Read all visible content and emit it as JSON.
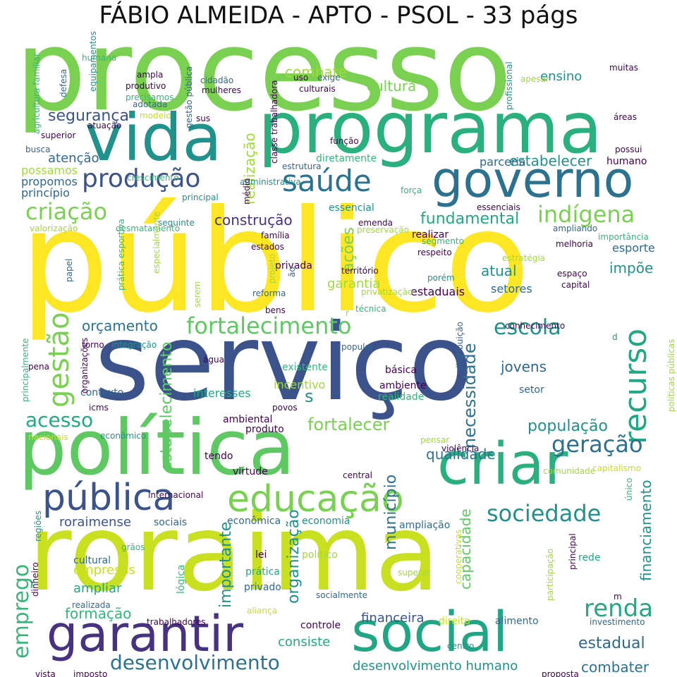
{
  "title": "FÁBIO ALMEIDA - APTO - PSOL - 33 págs",
  "chart_data": {
    "type": "wordcloud",
    "words": [
      {
        "text": "processo",
        "color": "#7ad151"
      },
      {
        "text": "público",
        "color": "#fde725"
      },
      {
        "text": "serviço",
        "color": "#3b528b"
      },
      {
        "text": "roraima",
        "color": "#c8e020"
      },
      {
        "text": "política",
        "color": "#5ec962"
      },
      {
        "text": "programa",
        "color": "#2ab07f"
      },
      {
        "text": "vida",
        "color": "#21918c"
      },
      {
        "text": "criar",
        "color": "#2ab07f"
      },
      {
        "text": "social",
        "color": "#21a585"
      },
      {
        "text": "governo",
        "color": "#2c728e"
      },
      {
        "text": "garantir",
        "color": "#46327e"
      },
      {
        "text": "pública",
        "color": "#3b528b"
      },
      {
        "text": "educação",
        "color": "#7ad151"
      },
      {
        "text": "saúde",
        "color": "#2c728e"
      },
      {
        "text": "produção",
        "color": "#3b528b"
      },
      {
        "text": "criação",
        "color": "#7ad151"
      },
      {
        "text": "indígena",
        "color": "#7ad151"
      },
      {
        "text": "fortalecimento",
        "color": "#5ec962"
      },
      {
        "text": "escola",
        "color": "#21918c"
      },
      {
        "text": "recurso",
        "color": "#22a884"
      },
      {
        "text": "gestão",
        "color": "#7ad151"
      },
      {
        "text": "geração",
        "color": "#2c728e"
      },
      {
        "text": "sociedade",
        "color": "#21918c"
      },
      {
        "text": "renda",
        "color": "#22a884"
      },
      {
        "text": "desenvolvimento",
        "color": "#2c728e"
      },
      {
        "text": "acesso",
        "color": "#22a884"
      },
      {
        "text": "emprego",
        "color": "#35b779"
      },
      {
        "text": "fortalecer",
        "color": "#7ad151"
      },
      {
        "text": "população",
        "color": "#21918c"
      },
      {
        "text": "qualidade",
        "color": "#2c728e"
      },
      {
        "text": "estabelecimento",
        "color": "#5ec962"
      },
      {
        "text": "necessidade",
        "color": "#2c728e"
      },
      {
        "text": "financiamento",
        "color": "#21918c"
      },
      {
        "text": "fundamental",
        "color": "#22a884"
      },
      {
        "text": "segurança",
        "color": "#3b528b"
      },
      {
        "text": "combate",
        "color": "#a0da39"
      },
      {
        "text": "cultura",
        "color": "#7ad151"
      },
      {
        "text": "estabelecer",
        "color": "#21918c"
      },
      {
        "text": "orçamento",
        "color": "#2c728e"
      },
      {
        "text": "atual",
        "color": "#21918c"
      },
      {
        "text": "construção",
        "color": "#46327e"
      },
      {
        "text": "ações",
        "color": "#7ad151"
      },
      {
        "text": "garantia",
        "color": "#a0da39"
      },
      {
        "text": "jovens",
        "color": "#31688e"
      },
      {
        "text": "estadual",
        "color": "#31688e"
      },
      {
        "text": "combater",
        "color": "#2c728e"
      },
      {
        "text": "município",
        "color": "#2c728e"
      },
      {
        "text": "capacidade",
        "color": "#5ec962"
      },
      {
        "text": "organização",
        "color": "#21918c"
      },
      {
        "text": "importante",
        "color": "#21918c"
      },
      {
        "text": "roraimense",
        "color": "#3b528b"
      },
      {
        "text": "formação",
        "color": "#35b779"
      },
      {
        "text": "consiste",
        "color": "#22a884"
      },
      {
        "text": "financeira",
        "color": "#3b528b"
      },
      {
        "text": "desenvolvimento humano",
        "color": "#21918c"
      },
      {
        "text": "impõe",
        "color": "#21918c"
      },
      {
        "text": "esporte",
        "color": "#31688e"
      },
      {
        "text": "atenção",
        "color": "#31688e"
      },
      {
        "text": "realização",
        "color": "#a0da39"
      },
      {
        "text": "s",
        "color": "#21918c"
      },
      {
        "text": "ampliar",
        "color": "#22a884"
      },
      {
        "text": "empresas",
        "color": "#c8e020"
      },
      {
        "text": "ensino",
        "color": "#21918c"
      },
      {
        "text": "possamos",
        "color": "#a0da39"
      },
      {
        "text": "propomos",
        "color": "#31688e"
      },
      {
        "text": "princípio",
        "color": "#31688e"
      },
      {
        "text": "parceria",
        "color": "#31688e"
      },
      {
        "text": "humano",
        "color": "#440154"
      },
      {
        "text": "setores",
        "color": "#31688e"
      },
      {
        "text": "estaduais",
        "color": "#440154"
      },
      {
        "text": "diretamente",
        "color": "#35b779"
      },
      {
        "text": "interesses",
        "color": "#22a884"
      },
      {
        "text": "incentivo",
        "color": "#a0da39"
      },
      {
        "text": "existente",
        "color": "#35b779"
      },
      {
        "text": "básica",
        "color": "#440154"
      },
      {
        "text": "ambiente",
        "color": "#440154"
      },
      {
        "text": "realidade",
        "color": "#35b779"
      },
      {
        "text": "setor",
        "color": "#31688e"
      },
      {
        "text": "contexto",
        "color": "#31688e"
      },
      {
        "text": "sociais",
        "color": "#31688e"
      },
      {
        "text": "econômica",
        "color": "#31688e"
      },
      {
        "text": "economia",
        "color": "#21918c"
      },
      {
        "text": "ampliação",
        "color": "#31688e"
      },
      {
        "text": "cultural",
        "color": "#31688e"
      },
      {
        "text": "lógica",
        "color": "#35b779"
      },
      {
        "text": "lei",
        "color": "#440154"
      },
      {
        "text": "político",
        "color": "#a0da39"
      },
      {
        "text": "prática",
        "color": "#22a884"
      },
      {
        "text": "privado",
        "color": "#31688e"
      },
      {
        "text": "privada",
        "color": "#440154"
      },
      {
        "text": "rede",
        "color": "#22a884"
      },
      {
        "text": "controle",
        "color": "#440154"
      },
      {
        "text": "direito",
        "color": "#c8e020"
      },
      {
        "text": "alimento",
        "color": "#31688e"
      },
      {
        "text": "virtude",
        "color": "#440154"
      },
      {
        "text": "ambiental",
        "color": "#440154"
      },
      {
        "text": "produto",
        "color": "#440154"
      },
      {
        "text": "tendo",
        "color": "#440154"
      },
      {
        "text": "água",
        "color": "#440154"
      },
      {
        "text": "pena",
        "color": "#440154"
      },
      {
        "text": "família",
        "color": "#440154"
      },
      {
        "text": "estados",
        "color": "#440154"
      },
      {
        "text": "território",
        "color": "#440154"
      },
      {
        "text": "reforma",
        "color": "#31688e"
      },
      {
        "text": "bens",
        "color": "#440154"
      },
      {
        "text": "realizar",
        "color": "#440154"
      },
      {
        "text": "respeito",
        "color": "#440154"
      },
      {
        "text": "segmento",
        "color": "#35b779"
      },
      {
        "text": "essencial",
        "color": "#21918c"
      },
      {
        "text": "essenciais",
        "color": "#440154"
      },
      {
        "text": "preservação",
        "color": "#a0da39"
      },
      {
        "text": "melhoria",
        "color": "#440154"
      },
      {
        "text": "capital",
        "color": "#440154"
      },
      {
        "text": "espaço",
        "color": "#440154"
      },
      {
        "text": "importância",
        "color": "#35b779"
      },
      {
        "text": "estratégia",
        "color": "#a0da39"
      },
      {
        "text": "ampliando",
        "color": "#31688e"
      },
      {
        "text": "culturais",
        "color": "#440154"
      },
      {
        "text": "uso",
        "color": "#440154"
      },
      {
        "text": "exige",
        "color": "#31688e"
      },
      {
        "text": "apesar",
        "color": "#a0da39"
      },
      {
        "text": "muitas",
        "color": "#440154"
      },
      {
        "text": "áreas",
        "color": "#440154"
      },
      {
        "text": "possui",
        "color": "#440154"
      },
      {
        "text": "função",
        "color": "#440154"
      },
      {
        "text": "estrutura",
        "color": "#31688e"
      },
      {
        "text": "força",
        "color": "#35b779"
      },
      {
        "text": "administrativa",
        "color": "#21918c"
      },
      {
        "text": "crescimento",
        "color": "#35b779"
      },
      {
        "text": "principal",
        "color": "#21918c"
      },
      {
        "text": "seguinte",
        "color": "#21918c"
      },
      {
        "text": "desmatamento",
        "color": "#35b779"
      },
      {
        "text": "valorização",
        "color": "#a0da39"
      },
      {
        "text": "adotada",
        "color": "#31688e"
      },
      {
        "text": "modelo",
        "color": "#c8e020"
      },
      {
        "text": "sus",
        "color": "#440154"
      },
      {
        "text": "atuação",
        "color": "#440154"
      },
      {
        "text": "superior",
        "color": "#440154"
      },
      {
        "text": "busca",
        "color": "#31688e"
      },
      {
        "text": "ampla",
        "color": "#440154"
      },
      {
        "text": "produtivo",
        "color": "#440154"
      },
      {
        "text": "precisamos",
        "color": "#35b779"
      },
      {
        "text": "cidadão",
        "color": "#31688e"
      },
      {
        "text": "mulheres",
        "color": "#440154"
      },
      {
        "text": "humana",
        "color": "#35b779"
      },
      {
        "text": "defesa",
        "color": "#31688e"
      },
      {
        "text": "equipamentos",
        "color": "#21918c"
      },
      {
        "text": "gestão pública",
        "color": "#31688e"
      },
      {
        "text": "classe trabalhadora",
        "color": "#440154"
      },
      {
        "text": "médio",
        "color": "#440154"
      },
      {
        "text": "profissional",
        "color": "#21918c"
      },
      {
        "text": "agricultura familiar",
        "color": "#35b779"
      },
      {
        "text": "papel",
        "color": "#31688e"
      },
      {
        "text": "prática esportiva",
        "color": "#35b779"
      },
      {
        "text": "especialmente",
        "color": "#a0da39"
      },
      {
        "text": "serem",
        "color": "#a0da39"
      },
      {
        "text": "projeto",
        "color": "#a0da39"
      },
      {
        "text": "ão",
        "color": "#31688e"
      },
      {
        "text": "técnica",
        "color": "#35b779"
      },
      {
        "text": "privatização",
        "color": "#a0da39"
      },
      {
        "text": "porém",
        "color": "#21918c"
      },
      {
        "text": "conhecimento",
        "color": "#440154"
      },
      {
        "text": "políticas públicas",
        "color": "#a0da39"
      },
      {
        "text": "d",
        "color": "#21918c"
      },
      {
        "text": "distribuição",
        "color": "#31688e"
      },
      {
        "text": "popular",
        "color": "#31688e"
      },
      {
        "text": "integração",
        "color": "#21918c"
      },
      {
        "text": "torno",
        "color": "#440154"
      },
      {
        "text": "icms",
        "color": "#440154"
      },
      {
        "text": "organizações",
        "color": "#440154"
      },
      {
        "text": "principalmente",
        "color": "#35b779"
      },
      {
        "text": "povos",
        "color": "#440154"
      },
      {
        "text": "nacionais",
        "color": "#c8e020"
      },
      {
        "text": "econômico",
        "color": "#21918c"
      },
      {
        "text": "pensar",
        "color": "#a0da39"
      },
      {
        "text": "violência",
        "color": "#440154"
      },
      {
        "text": "comunidade",
        "color": "#a0da39"
      },
      {
        "text": "capitalismo",
        "color": "#c8e020"
      },
      {
        "text": "central",
        "color": "#440154"
      },
      {
        "text": "internacional",
        "color": "#440154"
      },
      {
        "text": "único",
        "color": "#35b779"
      },
      {
        "text": "regiões",
        "color": "#21918c"
      },
      {
        "text": "grãos",
        "color": "#35b779"
      },
      {
        "text": "cooperativas",
        "color": "#c8e020"
      },
      {
        "text": "superar",
        "color": "#a0da39"
      },
      {
        "text": "participação",
        "color": "#a0da39"
      },
      {
        "text": "principal",
        "color": "#440154"
      },
      {
        "text": "m",
        "color": "#440154"
      },
      {
        "text": "dinheiro",
        "color": "#440154"
      },
      {
        "text": "realizada",
        "color": "#31688e"
      },
      {
        "text": "aliança",
        "color": "#c8e020"
      },
      {
        "text": "trabalhadores",
        "color": "#440154"
      },
      {
        "text": "investimento",
        "color": "#31688e"
      },
      {
        "text": "socialmente",
        "color": "#31688e"
      },
      {
        "text": "centro",
        "color": "#21918c"
      },
      {
        "text": "vista",
        "color": "#440154"
      },
      {
        "text": "imposto",
        "color": "#440154"
      },
      {
        "text": "proposta",
        "color": "#440154"
      },
      {
        "text": "emenda",
        "color": "#440154"
      },
      {
        "text": "r",
        "color": "#a0da39"
      }
    ]
  }
}
